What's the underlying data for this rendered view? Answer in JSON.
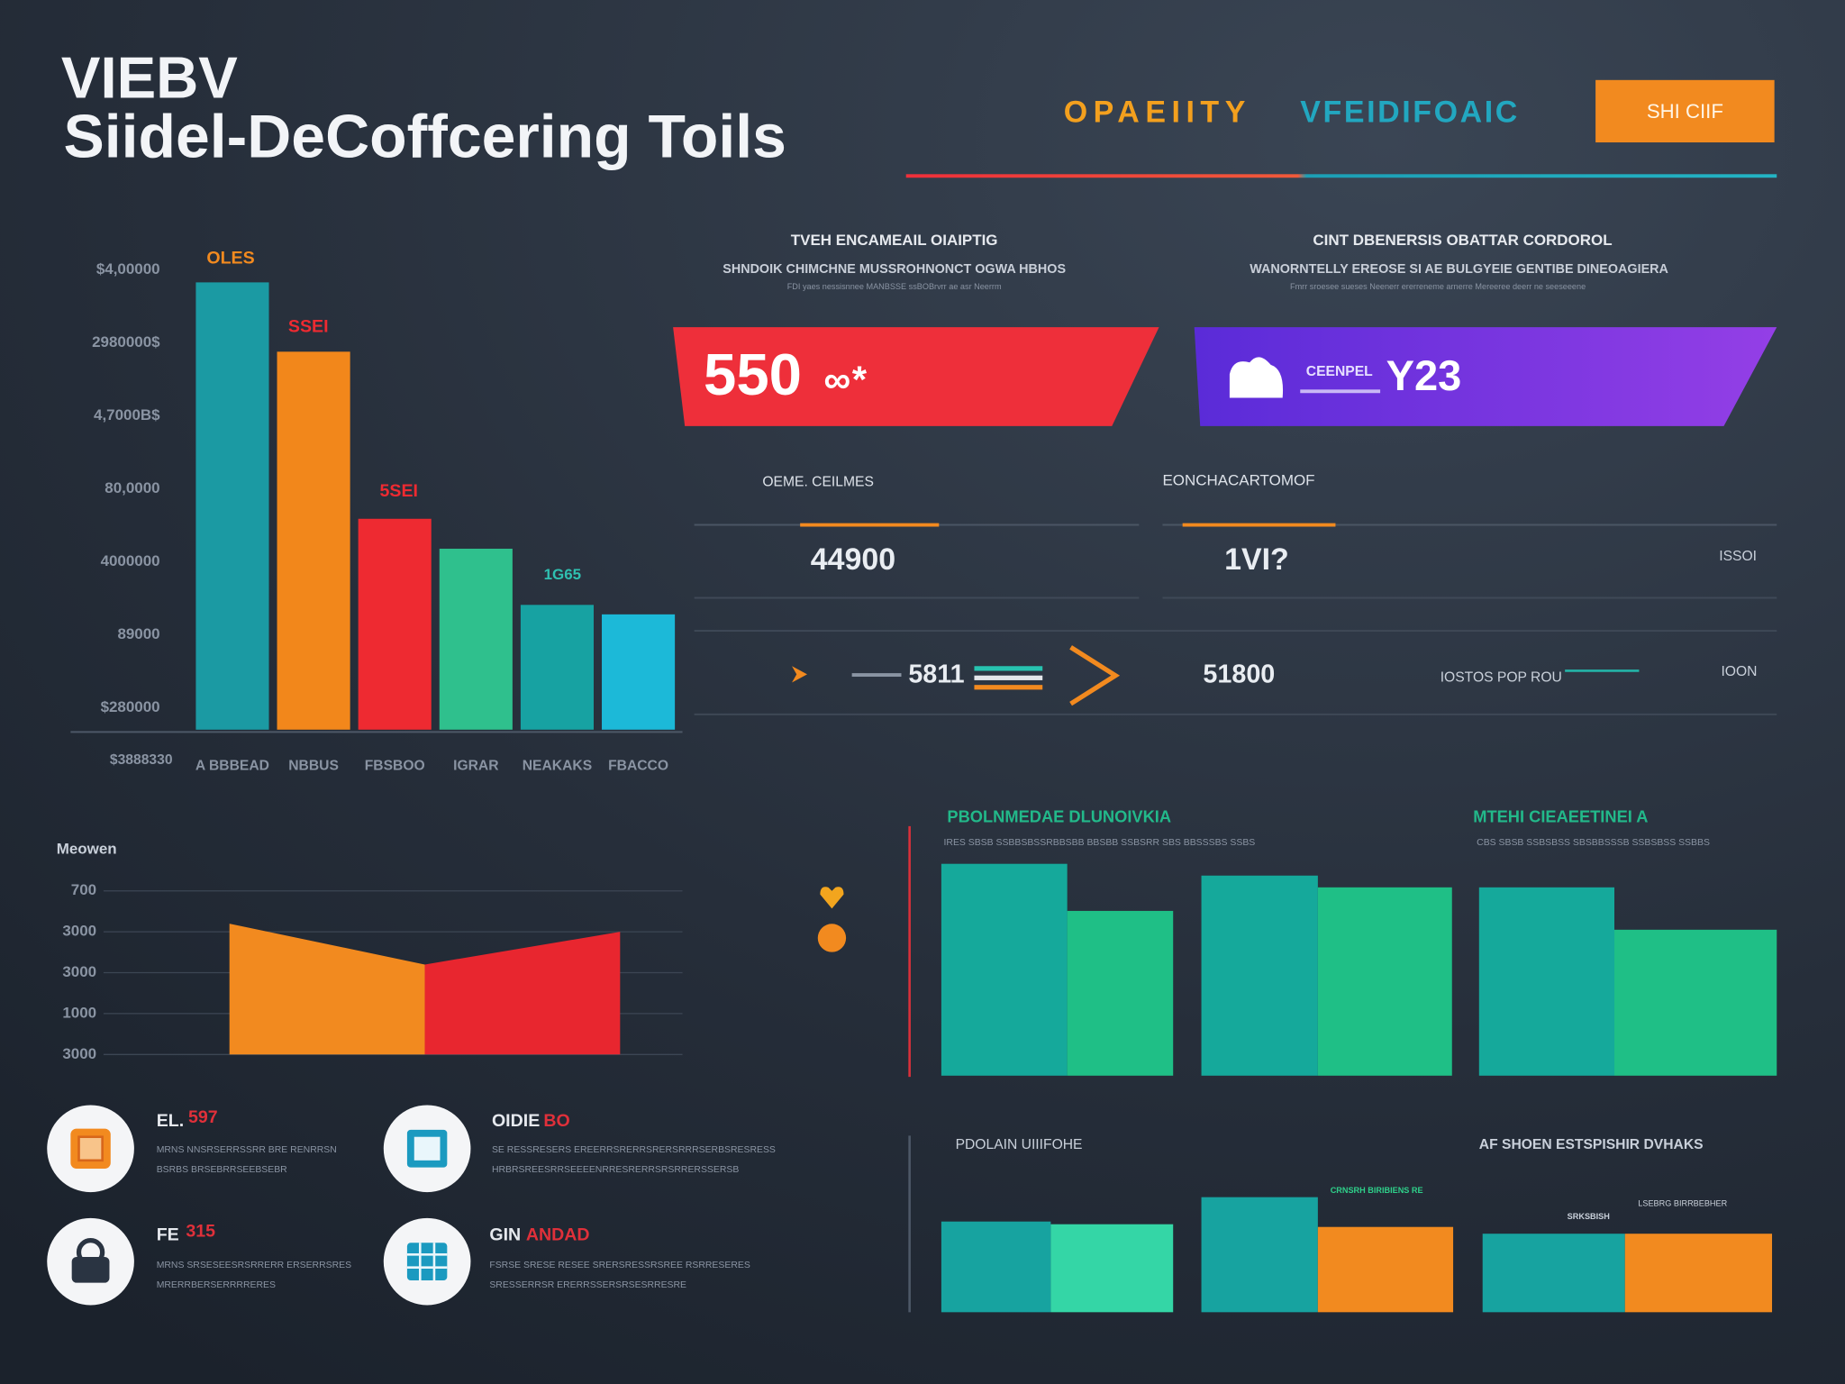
{
  "header": {
    "title_line1": "VIEBV",
    "title_line2": "Siidel-DeCoffcering Toils",
    "tagline_part1": "OPAEIITY",
    "tagline_part2": "VFEIDIFOAIC",
    "button": "SHI CIIF"
  },
  "kpi_columns": [
    {
      "heading": "TVEH ENCAMEAIL OIAIPTIG",
      "subheading": "SHNDOIK CHIMCHNE MUSSROHNONCT OGWA HBHOS",
      "note": "FDI yaes nessisnnee MANBSSE ssBOBrvrr ae asr Neerrm"
    },
    {
      "heading": "CINT DBENERSIS OBATTAR CORDOROL",
      "subheading": "WANORNTELLY EREOSE SI AE BULGYEIE GENTIBE DINEOAGIERA",
      "note": "Fmrr sroesee sueses Neenerr ererreneme arnerre Mereeree deerr ne seeseeene"
    }
  ],
  "kpi_cards": [
    {
      "value": "550",
      "suffix": "∞*"
    },
    {
      "label": "CEENPEL",
      "value": "Y23"
    }
  ],
  "stats": {
    "col1_label": "OEME. CEILMES",
    "col2_label": "EONCHACARTOMOF",
    "row1": [
      "44900",
      "1VI?",
      "ISSOI"
    ],
    "row2": [
      "5811",
      "51800",
      "IOSTOS POP ROU",
      "IOON"
    ]
  },
  "features": [
    {
      "title": "EL.",
      "accent": "597",
      "lines": [
        "MRNS NNSRSERRSSRR BRE RENRRSN",
        "BSRBS BRSEBRRSEEBSEBR"
      ]
    },
    {
      "title": "OIDIE",
      "accent": "BO",
      "lines": [
        "SE RESSRESERS EREERRSRERRSRERSRRRSERBSRESRESS",
        "HRBRSREESRRSEEEENRRESRERRSRSRRERSSERSB"
      ]
    },
    {
      "title": "FE",
      "accent": "315",
      "lines": [
        "MRNS SRSESEESRSRRERR ERSERRSRES",
        "MRERRBERSERRRRERES"
      ]
    },
    {
      "title": "GIN",
      "accent": "ANDAD",
      "lines": [
        "FSRSE SRESE RESEE SRERSRESSRSREE RSRRESERES",
        "SRESSERRSR ERERRSSERSRSESRRESRE"
      ]
    }
  ],
  "chart_data": [
    {
      "type": "bar",
      "categories": [
        "A BBBEAD",
        "NBBUS",
        "FBSBOO",
        "IGRAR",
        "NEAKAKS",
        "FBACCO"
      ],
      "values": [
        6.13,
        5.18,
        2.89,
        2.48,
        1.71,
        1.58
      ],
      "colors": [
        "#1b9aa3",
        "#f2871b",
        "#ee2a31",
        "#2fc08d",
        "#17a2a2",
        "#1cb9d8"
      ],
      "ylim": [
        0,
        6.8
      ],
      "yticks": [
        {
          "value": 6.3,
          "label": "$4,00000"
        },
        {
          "value": 5.3,
          "label": "2980000$"
        },
        {
          "value": 4.3,
          "label": "4,7000B$"
        },
        {
          "value": 3.3,
          "label": "80,0000"
        },
        {
          "value": 2.3,
          "label": "4000000"
        },
        {
          "value": 1.3,
          "label": "89000"
        },
        {
          "value": 0.3,
          "label": "$280000"
        }
      ],
      "grid": false,
      "origin_label": "$3888330",
      "annotations": [
        "OLES",
        "SSEI",
        "5SEI",
        "1G65"
      ]
    },
    {
      "type": "area",
      "title": "Meowen",
      "values": [
        3.2,
        2.2,
        3.0
      ],
      "colors": [
        "#f28a1f",
        "#e8262f"
      ],
      "ylim": [
        0,
        4.3
      ],
      "yticks": [
        {
          "value": 4,
          "label": "700"
        },
        {
          "value": 3,
          "label": "3000"
        },
        {
          "value": 2,
          "label": "3000"
        },
        {
          "value": 1,
          "label": "1000"
        },
        {
          "value": 0,
          "label": "3000"
        }
      ],
      "grid": true
    },
    {
      "type": "blocks",
      "title": "PBOLNMEDAE DLUNOIVKIA",
      "subtitle": "IRES SBSB SSBBSBSSRBBSBB BBSBB SSBSRR SBS BBSSSBS SSBS",
      "title2": "MTEHI CIEAEETINEI A",
      "subtitle2": "CBS SBSB SSBSBSS SBSBBSSSB SSBSBSS SSBBS",
      "ylim": [
        0,
        100
      ],
      "series": [
        {
          "color": "#15a99b",
          "values": [
            90,
            85,
            80
          ]
        },
        {
          "color": "#1fbf86",
          "values": [
            70,
            80,
            62
          ]
        }
      ]
    },
    {
      "type": "blocks",
      "title": "PDOLAIN UIIIFOHE",
      "title2": "AF SHOEN ESTSPISHIR DVHAKS",
      "ylim": [
        0,
        100
      ],
      "series": [
        {
          "color": "#17a3a0",
          "values": [
            67,
            85,
            58
          ]
        },
        {
          "color": "#34d6a6",
          "colors": [
            "#34d6a6",
            "#f28a1f",
            "#f28a1f"
          ],
          "values": [
            65,
            63,
            58
          ]
        }
      ],
      "annotations": [
        "CRNSRH BIRIBIENS RE",
        "SRKSBISH",
        "LSEBRG BIRRBEBHER"
      ]
    }
  ]
}
